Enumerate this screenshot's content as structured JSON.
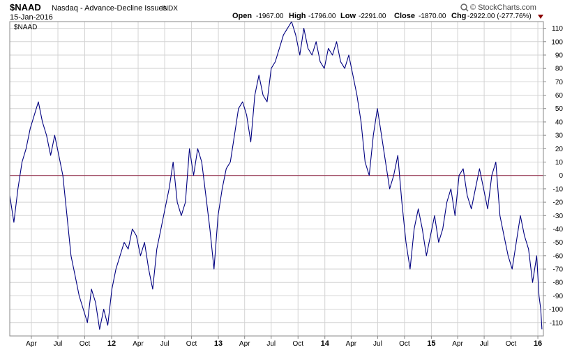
{
  "header": {
    "symbol": "$NAAD",
    "description": "Nasdaq - Advance-Decline Issues",
    "type": "INDX",
    "date": "15-Jan-2016",
    "open_label": "Open",
    "open_value": "-1967.00",
    "high_label": "High",
    "high_value": "-1796.00",
    "low_label": "Low",
    "low_value": "-2291.00",
    "close_label": "Close",
    "close_value": "-1870.00",
    "chg_label": "Chg",
    "chg_value": "-2922.00 (-277.76%)",
    "brand": "© StockCharts.com"
  },
  "legend": {
    "label": "$NAAD"
  },
  "colors": {
    "series": "#000080",
    "zero_line": "#8b1a3a",
    "grid": "#d3d3d3",
    "frame": "#888888",
    "down_marker": "#8b0000",
    "brand_mark": "#666666"
  },
  "chart_data": {
    "type": "line",
    "title": "Nasdaq - Advance-Decline Issues",
    "xlabel": "",
    "ylabel": "",
    "ylim": [
      -120,
      115
    ],
    "xlim": [
      "2011-01-17",
      "2016-01-20"
    ],
    "yticks": [
      110,
      100,
      90,
      80,
      70,
      60,
      50,
      40,
      30,
      20,
      10,
      0,
      -10,
      -20,
      -30,
      -40,
      -50,
      -60,
      -70,
      -80,
      -90,
      -100,
      -110
    ],
    "xticks": [
      {
        "date": "2011-04-01",
        "label": "Apr",
        "year": false
      },
      {
        "date": "2011-07-01",
        "label": "Jul",
        "year": false
      },
      {
        "date": "2011-10-01",
        "label": "Oct",
        "year": false
      },
      {
        "date": "2012-01-01",
        "label": "12",
        "year": true
      },
      {
        "date": "2012-04-01",
        "label": "Apr",
        "year": false
      },
      {
        "date": "2012-07-01",
        "label": "Jul",
        "year": false
      },
      {
        "date": "2012-10-01",
        "label": "Oct",
        "year": false
      },
      {
        "date": "2013-01-01",
        "label": "13",
        "year": true
      },
      {
        "date": "2013-04-01",
        "label": "Apr",
        "year": false
      },
      {
        "date": "2013-07-01",
        "label": "Jul",
        "year": false
      },
      {
        "date": "2013-10-01",
        "label": "Oct",
        "year": false
      },
      {
        "date": "2014-01-01",
        "label": "14",
        "year": true
      },
      {
        "date": "2014-04-01",
        "label": "Apr",
        "year": false
      },
      {
        "date": "2014-07-01",
        "label": "Jul",
        "year": false
      },
      {
        "date": "2014-10-01",
        "label": "Oct",
        "year": false
      },
      {
        "date": "2015-01-01",
        "label": "15",
        "year": true
      },
      {
        "date": "2015-04-01",
        "label": "Apr",
        "year": false
      },
      {
        "date": "2015-07-01",
        "label": "Jul",
        "year": false
      },
      {
        "date": "2015-10-01",
        "label": "Oct",
        "year": false
      },
      {
        "date": "2016-01-01",
        "label": "16",
        "year": true
      }
    ],
    "grid": true,
    "legend_position": "top-left",
    "series": [
      {
        "name": "$NAAD",
        "points": [
          [
            "2011-01-17",
            -15
          ],
          [
            "2011-01-31",
            -35
          ],
          [
            "2011-02-14",
            -10
          ],
          [
            "2011-02-28",
            10
          ],
          [
            "2011-03-14",
            20
          ],
          [
            "2011-03-28",
            35
          ],
          [
            "2011-04-11",
            45
          ],
          [
            "2011-04-25",
            55
          ],
          [
            "2011-05-09",
            40
          ],
          [
            "2011-05-23",
            30
          ],
          [
            "2011-06-06",
            15
          ],
          [
            "2011-06-20",
            30
          ],
          [
            "2011-07-04",
            15
          ],
          [
            "2011-07-18",
            0
          ],
          [
            "2011-08-01",
            -30
          ],
          [
            "2011-08-15",
            -60
          ],
          [
            "2011-08-29",
            -75
          ],
          [
            "2011-09-12",
            -90
          ],
          [
            "2011-09-26",
            -100
          ],
          [
            "2011-10-10",
            -110
          ],
          [
            "2011-10-24",
            -85
          ],
          [
            "2011-11-07",
            -95
          ],
          [
            "2011-11-21",
            -115
          ],
          [
            "2011-12-05",
            -100
          ],
          [
            "2011-12-19",
            -112
          ],
          [
            "2012-01-02",
            -85
          ],
          [
            "2012-01-16",
            -70
          ],
          [
            "2012-01-30",
            -60
          ],
          [
            "2012-02-13",
            -50
          ],
          [
            "2012-02-27",
            -55
          ],
          [
            "2012-03-12",
            -40
          ],
          [
            "2012-03-26",
            -45
          ],
          [
            "2012-04-09",
            -60
          ],
          [
            "2012-04-23",
            -50
          ],
          [
            "2012-05-07",
            -70
          ],
          [
            "2012-05-21",
            -85
          ],
          [
            "2012-06-04",
            -55
          ],
          [
            "2012-06-18",
            -40
          ],
          [
            "2012-07-02",
            -25
          ],
          [
            "2012-07-16",
            -10
          ],
          [
            "2012-07-30",
            10
          ],
          [
            "2012-08-13",
            -20
          ],
          [
            "2012-08-27",
            -30
          ],
          [
            "2012-09-10",
            -20
          ],
          [
            "2012-09-24",
            20
          ],
          [
            "2012-10-08",
            0
          ],
          [
            "2012-10-22",
            20
          ],
          [
            "2012-11-05",
            10
          ],
          [
            "2012-11-19",
            -15
          ],
          [
            "2012-12-03",
            -40
          ],
          [
            "2012-12-17",
            -70
          ],
          [
            "2012-12-31",
            -30
          ],
          [
            "2013-01-14",
            -10
          ],
          [
            "2013-01-28",
            5
          ],
          [
            "2013-02-11",
            10
          ],
          [
            "2013-02-25",
            30
          ],
          [
            "2013-03-11",
            50
          ],
          [
            "2013-03-25",
            55
          ],
          [
            "2013-04-08",
            45
          ],
          [
            "2013-04-22",
            25
          ],
          [
            "2013-05-06",
            60
          ],
          [
            "2013-05-20",
            75
          ],
          [
            "2013-06-03",
            60
          ],
          [
            "2013-06-17",
            55
          ],
          [
            "2013-07-01",
            80
          ],
          [
            "2013-07-15",
            85
          ],
          [
            "2013-07-29",
            95
          ],
          [
            "2013-08-12",
            105
          ],
          [
            "2013-08-26",
            110
          ],
          [
            "2013-09-09",
            115
          ],
          [
            "2013-09-23",
            105
          ],
          [
            "2013-10-07",
            90
          ],
          [
            "2013-10-21",
            110
          ],
          [
            "2013-11-04",
            95
          ],
          [
            "2013-11-18",
            90
          ],
          [
            "2013-12-02",
            100
          ],
          [
            "2013-12-16",
            85
          ],
          [
            "2013-12-30",
            80
          ],
          [
            "2014-01-13",
            95
          ],
          [
            "2014-01-27",
            90
          ],
          [
            "2014-02-10",
            100
          ],
          [
            "2014-02-24",
            85
          ],
          [
            "2014-03-10",
            80
          ],
          [
            "2014-03-24",
            90
          ],
          [
            "2014-04-07",
            75
          ],
          [
            "2014-04-21",
            60
          ],
          [
            "2014-05-05",
            40
          ],
          [
            "2014-05-19",
            10
          ],
          [
            "2014-06-02",
            0
          ],
          [
            "2014-06-16",
            30
          ],
          [
            "2014-06-30",
            50
          ],
          [
            "2014-07-14",
            30
          ],
          [
            "2014-07-28",
            10
          ],
          [
            "2014-08-11",
            -10
          ],
          [
            "2014-08-25",
            0
          ],
          [
            "2014-09-08",
            15
          ],
          [
            "2014-09-22",
            -20
          ],
          [
            "2014-10-06",
            -50
          ],
          [
            "2014-10-20",
            -70
          ],
          [
            "2014-11-03",
            -40
          ],
          [
            "2014-11-17",
            -25
          ],
          [
            "2014-12-01",
            -40
          ],
          [
            "2014-12-15",
            -60
          ],
          [
            "2014-12-29",
            -45
          ],
          [
            "2015-01-12",
            -30
          ],
          [
            "2015-01-26",
            -50
          ],
          [
            "2015-02-09",
            -40
          ],
          [
            "2015-02-23",
            -20
          ],
          [
            "2015-03-09",
            -10
          ],
          [
            "2015-03-23",
            -30
          ],
          [
            "2015-04-06",
            0
          ],
          [
            "2015-04-20",
            5
          ],
          [
            "2015-05-04",
            -15
          ],
          [
            "2015-05-18",
            -25
          ],
          [
            "2015-06-01",
            -10
          ],
          [
            "2015-06-15",
            5
          ],
          [
            "2015-06-29",
            -10
          ],
          [
            "2015-07-13",
            -25
          ],
          [
            "2015-07-27",
            0
          ],
          [
            "2015-08-10",
            10
          ],
          [
            "2015-08-24",
            -30
          ],
          [
            "2015-09-07",
            -45
          ],
          [
            "2015-09-21",
            -60
          ],
          [
            "2015-10-05",
            -70
          ],
          [
            "2015-10-19",
            -50
          ],
          [
            "2015-11-02",
            -30
          ],
          [
            "2015-11-16",
            -45
          ],
          [
            "2015-11-30",
            -55
          ],
          [
            "2015-12-14",
            -80
          ],
          [
            "2015-12-28",
            -60
          ],
          [
            "2016-01-05",
            -90
          ],
          [
            "2016-01-11",
            -100
          ],
          [
            "2016-01-15",
            -115
          ]
        ]
      }
    ]
  }
}
